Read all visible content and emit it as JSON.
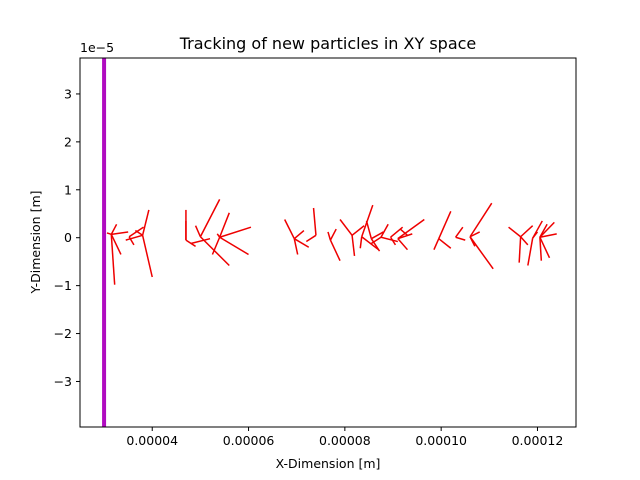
{
  "chart_data": {
    "type": "line",
    "title": "Tracking of new particles in XY space",
    "xlabel": "X-Dimension [m]",
    "ylabel": "Y-Dimension [m]",
    "y_offset_label": "1e−5",
    "xlim": [
      2.5e-05,
      0.000128
    ],
    "ylim": [
      -3.95e-05,
      3.75e-05
    ],
    "x_ticks": [
      {
        "value": 4e-05,
        "label": "0.00004"
      },
      {
        "value": 6e-05,
        "label": "0.00006"
      },
      {
        "value": 8e-05,
        "label": "0.00008"
      },
      {
        "value": 0.0001,
        "label": "0.00010"
      },
      {
        "value": 0.00012,
        "label": "0.00012"
      }
    ],
    "y_ticks": [
      {
        "value": 3e-05,
        "label": "3"
      },
      {
        "value": 2e-05,
        "label": "2"
      },
      {
        "value": 1e-05,
        "label": "1"
      },
      {
        "value": 0,
        "label": "0"
      },
      {
        "value": -1e-05,
        "label": "−1"
      },
      {
        "value": -2e-05,
        "label": "−2"
      },
      {
        "value": -3e-05,
        "label": "−3"
      }
    ],
    "grid": false,
    "boundary": {
      "x": 3e-05,
      "color": "#b00bc0"
    },
    "track_color": "#ee0000",
    "segments": [
      [
        3.15e-05,
        7e-07,
        3.06e-05,
        1e-06
      ],
      [
        3.15e-05,
        7e-07,
        3.22e-05,
        -9.8e-06
      ],
      [
        3.15e-05,
        7e-07,
        3.26e-05,
        2.8e-06
      ],
      [
        3.15e-05,
        7e-07,
        3.35e-05,
        -3.5e-06
      ],
      [
        3.15e-05,
        7e-07,
        3.5e-05,
        1.2e-06
      ],
      [
        3.52e-05,
        2e-07,
        3.62e-05,
        -1.5e-06
      ],
      [
        3.52e-05,
        2e-07,
        3.82e-05,
        2.2e-06
      ],
      [
        3.8e-05,
        5e-07,
        3.93e-05,
        5.8e-06
      ],
      [
        3.8e-05,
        5e-07,
        4e-05,
        -8.2e-06
      ],
      [
        3.8e-05,
        5e-07,
        3.65e-05,
        1.5e-06
      ],
      [
        3.8e-05,
        5e-07,
        3.45e-05,
        -5e-07
      ],
      [
        4.7e-05,
        -5e-07,
        4.7e-05,
        3.5e-06
      ],
      [
        4.7e-05,
        -5e-07,
        4.9e-05,
        -1.8e-06
      ],
      [
        4.7e-05,
        -5e-07,
        4.7e-05,
        5.8e-06
      ],
      [
        5e-05,
        2e-07,
        4.9e-05,
        2.5e-06
      ],
      [
        5e-05,
        2e-07,
        5.4e-05,
        8e-06
      ],
      [
        5e-05,
        2e-07,
        5.6e-05,
        -5.8e-06
      ],
      [
        5.2e-05,
        -2e-07,
        4.8e-05,
        -1.2e-06
      ],
      [
        5.4e-05,
        1e-07,
        5.25e-05,
        -3.5e-06
      ],
      [
        5.4e-05,
        1e-07,
        5.6e-05,
        5.2e-06
      ],
      [
        5.4e-05,
        1e-07,
        6.05e-05,
        2.2e-06
      ],
      [
        5.4e-05,
        1e-07,
        6e-05,
        -3.5e-06
      ],
      [
        5.4e-05,
        1e-07,
        5.35e-05,
        8e-07
      ],
      [
        6.95e-05,
        -2e-07,
        6.75e-05,
        3.8e-06
      ],
      [
        6.95e-05,
        -2e-07,
        7.02e-05,
        -3.5e-06
      ],
      [
        6.95e-05,
        -2e-07,
        7.15e-05,
        1.5e-06
      ],
      [
        6.95e-05,
        -2e-07,
        7.25e-05,
        -2e-06
      ],
      [
        7.4e-05,
        5e-07,
        7.35e-05,
        6.2e-06
      ],
      [
        7.4e-05,
        5e-07,
        7.2e-05,
        -8e-07
      ],
      [
        7.7e-05,
        -5e-07,
        7.9e-05,
        -4.8e-06
      ],
      [
        7.7e-05,
        -5e-07,
        7.65e-05,
        1.2e-06
      ],
      [
        7.7e-05,
        -5e-07,
        7.82e-05,
        1.8e-06
      ],
      [
        8.15e-05,
        5e-07,
        7.9e-05,
        3.8e-06
      ],
      [
        8.15e-05,
        5e-07,
        8.2e-05,
        -3.8e-06
      ],
      [
        8.15e-05,
        5e-07,
        8.4e-05,
        2.5e-06
      ],
      [
        8.35e-05,
        2e-07,
        8.32e-05,
        -2.2e-06
      ],
      [
        8.35e-05,
        2e-07,
        8.58e-05,
        6.8e-06
      ],
      [
        8.35e-05,
        2e-07,
        8.7e-05,
        -2.5e-06
      ],
      [
        8.55e-05,
        -2e-07,
        8.45e-05,
        3.5e-06
      ],
      [
        8.55e-05,
        -2e-07,
        8.8e-05,
        1.2e-06
      ],
      [
        8.55e-05,
        -2e-07,
        8.72e-05,
        -2.8e-06
      ],
      [
        8.75e-05,
        1e-07,
        8.9e-05,
        2.8e-06
      ],
      [
        8.75e-05,
        1e-07,
        8.55e-05,
        -1.2e-06
      ],
      [
        8.75e-05,
        1e-07,
        9.1e-05,
        -8e-07
      ],
      [
        8.95e-05,
        1e-07,
        9.2e-05,
        2.2e-06
      ],
      [
        8.95e-05,
        1e-07,
        9.05e-05,
        -1.5e-06
      ],
      [
        9.1e-05,
        -2e-07,
        9.4e-05,
        8e-07
      ],
      [
        9.1e-05,
        -2e-07,
        9.3e-05,
        -2.5e-06
      ],
      [
        9.1e-05,
        -2e-07,
        9.65e-05,
        3.8e-06
      ],
      [
        9.3e-05,
        5e-07,
        9.15e-05,
        1.8e-06
      ],
      [
        9.95e-05,
        -2e-07,
        9.85e-05,
        -2.5e-06
      ],
      [
        9.95e-05,
        -2e-07,
        0.000102,
        5.5e-06
      ],
      [
        9.95e-05,
        -2e-07,
        0.000102,
        -2.2e-06
      ],
      [
        0.000103,
        1e-07,
        0.0001045,
        2.2e-06
      ],
      [
        0.000103,
        1e-07,
        0.000105,
        -5e-07
      ],
      [
        0.000106,
        2e-07,
        0.000107,
        -1.8e-06
      ],
      [
        0.000106,
        2e-07,
        0.0001105,
        7.2e-06
      ],
      [
        0.000106,
        2e-07,
        0.0001108,
        -6.5e-06
      ],
      [
        0.000106,
        2e-07,
        0.000108,
        1.2e-06
      ],
      [
        0.0001165,
        2e-07,
        0.000114,
        2.2e-06
      ],
      [
        0.0001165,
        2e-07,
        0.0001162,
        -5.2e-06
      ],
      [
        0.0001165,
        2e-07,
        0.000119,
        2.5e-06
      ],
      [
        0.0001165,
        2e-07,
        0.000118,
        -1.5e-06
      ],
      [
        0.000119,
        -1e-07,
        0.000121,
        3.5e-06
      ],
      [
        0.000119,
        -1e-07,
        0.000118,
        -5.8e-06
      ],
      [
        0.000119,
        -1e-07,
        0.00012,
        1.2e-06
      ],
      [
        0.0001205,
        1e-07,
        0.0001208,
        -4.8e-06
      ],
      [
        0.0001205,
        1e-07,
        0.0001225,
        -4.2e-06
      ],
      [
        0.0001205,
        1e-07,
        0.0001235,
        3.2e-06
      ],
      [
        0.0001205,
        1e-07,
        0.000124,
        8e-07
      ],
      [
        0.0001205,
        1e-07,
        0.000122,
        2.8e-06
      ]
    ]
  }
}
